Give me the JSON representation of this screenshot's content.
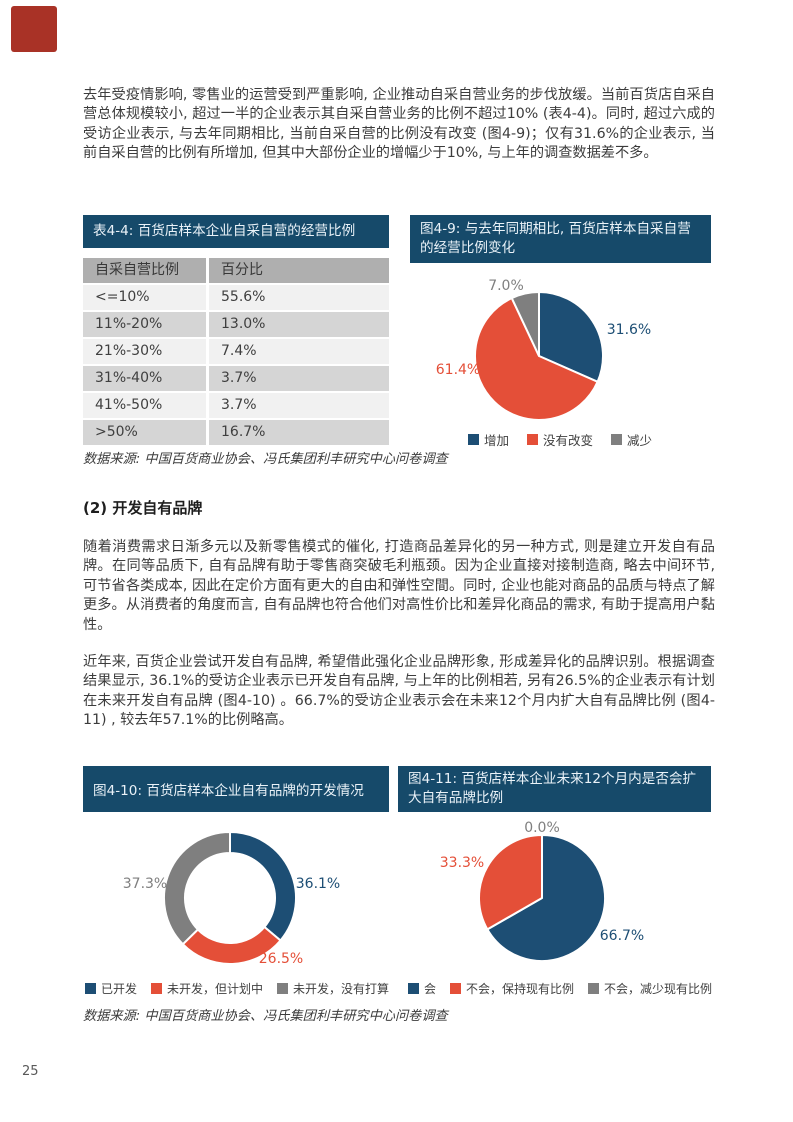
{
  "page": {
    "number": "25"
  },
  "theme": {
    "header_bar_blue": "#164A6A",
    "pie_blue": "#1D4E74",
    "pie_red": "#E44F38",
    "pie_gray": "#7F7F7F",
    "corner_red": "#A93226"
  },
  "paragraphs": {
    "p1": "去年受疫情影响, 零售业的运营受到严重影响, 企业推动自采自营业务的步伐放缓。当前百货店自采自营总体规模较小, 超过一半的企业表示其自采自营业务的比例不超过10% (表4-4)。同时, 超过六成的受访企业表示, 与去年同期相比, 当前自采自营的比例没有改变 (图4-9)；仅有31.6%的企业表示, 当前自采自营的比例有所增加, 但其中大部份企业的增幅少于10%, 与上年的调查数据差不多。",
    "p2": "随着消费需求日渐多元以及新零售模式的催化, 打造商品差异化的另一种方式, 则是建立开发自有品牌。在同等品质下, 自有品牌有助于零售商突破毛利瓶颈。因为企业直接对接制造商, 略去中间环节, 可节省各类成本, 因此在定价方面有更大的自由和弹性空間。同时, 企业也能对商品的品质与特点了解更多。从消费者的角度而言, 自有品牌也符合他们对高性价比和差异化商品的需求, 有助于提高用户黏性。",
    "p3": "近年来, 百货企业尝试开发自有品牌, 希望借此强化企业品牌形象, 形成差异化的品牌识别。根据调查结果显示, 36.1%的受访企业表示已开发自有品牌, 与上年的比例相若, 另有26.5%的企业表示有计划在未来开发自有品牌 (图4-10) 。66.7%的受访企业表示会在未来12个月内扩大自有品牌比例 (图4-11) , 较去年57.1%的比例略高。"
  },
  "section_heading": "(2) 开发自有品牌",
  "source_note": "数据来源: 中国百货商业协会、冯氏集团利丰研究中心问卷调查",
  "table": {
    "title": "表4-4: 百货店样本企业自采自营的经营比例",
    "columns": [
      "自采自营比例",
      "百分比"
    ],
    "rows": [
      [
        "<=10%",
        "55.6%"
      ],
      [
        "11%-20%",
        "13.0%"
      ],
      [
        "21%-30%",
        "7.4%"
      ],
      [
        "31%-40%",
        "3.7%"
      ],
      [
        "41%-50%",
        "3.7%"
      ],
      [
        ">50%",
        "16.7%"
      ]
    ]
  },
  "chart_data": [
    {
      "id": "fig4-9",
      "type": "pie",
      "title": "图4-9: 与去年同期相比, 百货店样本自采自营的经营比例变化",
      "labels": [
        "增加",
        "没有改变",
        "减少"
      ],
      "values": [
        31.6,
        61.4,
        7.0
      ],
      "value_labels": [
        "31.6%",
        "61.4%",
        "7.0%"
      ],
      "colors": [
        "#1D4E74",
        "#E44F38",
        "#7F7F7F"
      ],
      "start_angle_deg": 0,
      "direction": "clockwise",
      "legend_position": "bottom-center"
    },
    {
      "id": "fig4-10",
      "type": "donut",
      "title": "图4-10: 百货店样本企业自有品牌的开发情况",
      "labels": [
        "已开发",
        "未开发，但计划中",
        "未开发，没有打算"
      ],
      "values": [
        36.1,
        26.5,
        37.3
      ],
      "value_labels": [
        "36.1%",
        "26.5%",
        "37.3%"
      ],
      "colors": [
        "#1D4E74",
        "#E44F38",
        "#7F7F7F"
      ],
      "start_angle_deg": 0,
      "direction": "clockwise",
      "legend_position": "bottom-left"
    },
    {
      "id": "fig4-11",
      "type": "pie",
      "title": "图4-11: 百货店样本企业未来12个月内是否会扩大自有品牌比例",
      "labels": [
        "会",
        "不会，保持现有比例",
        "不会，减少现有比例"
      ],
      "values": [
        66.7,
        33.3,
        0.0
      ],
      "value_labels": [
        "66.7%",
        "33.3%",
        "0.0%"
      ],
      "colors": [
        "#1D4E74",
        "#E44F38",
        "#7F7F7F"
      ],
      "start_angle_deg": 0,
      "direction": "clockwise",
      "legend_position": "bottom-left"
    }
  ]
}
